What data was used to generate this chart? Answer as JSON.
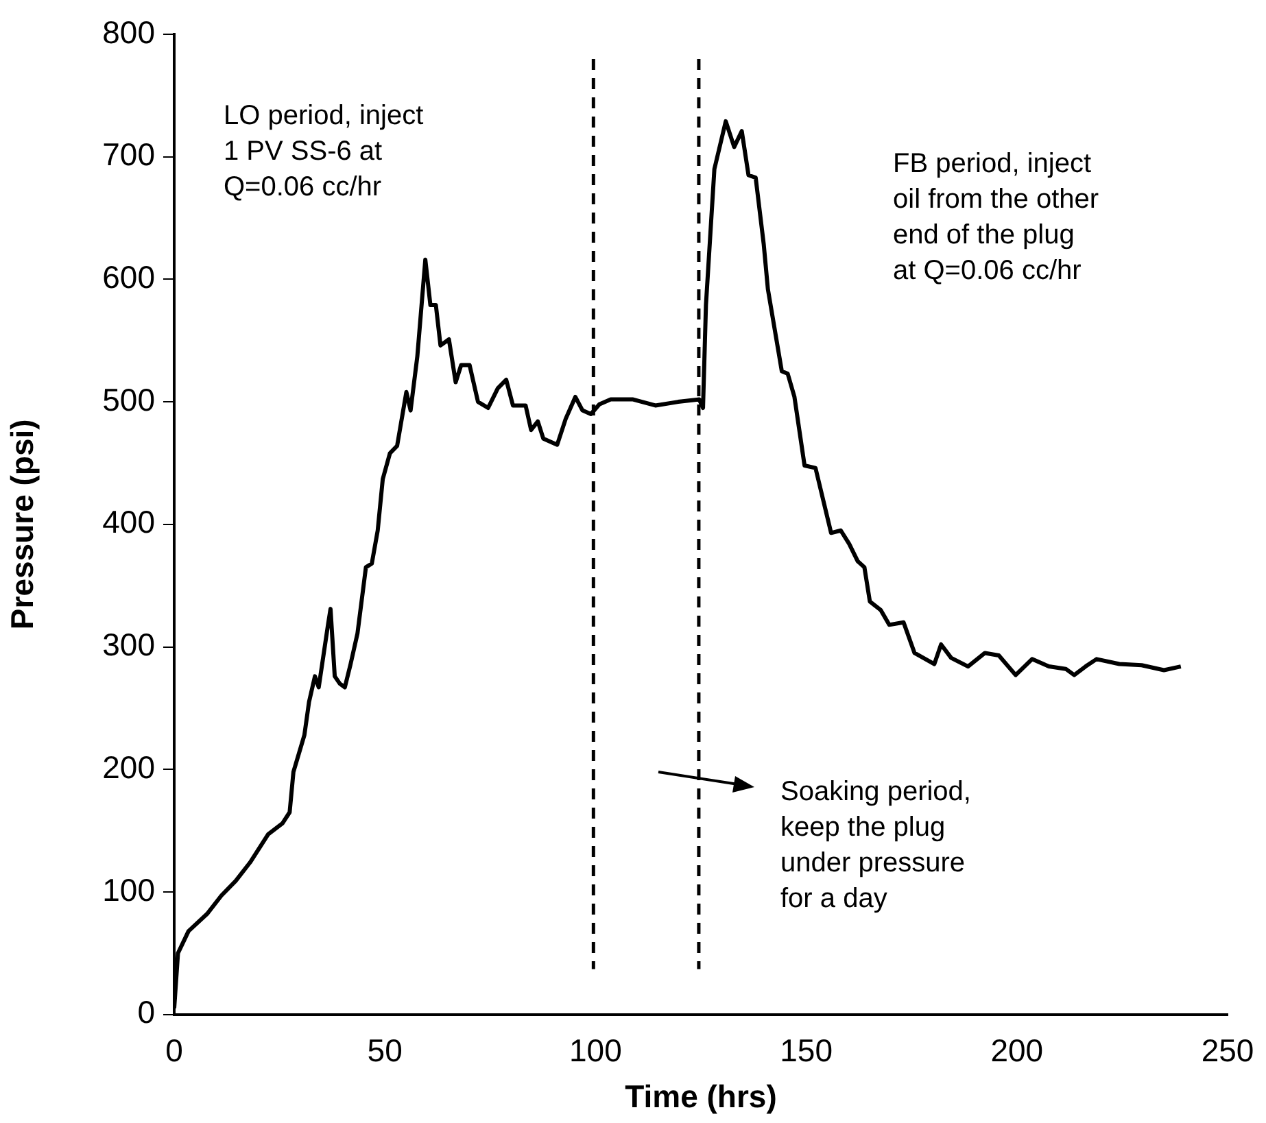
{
  "chart_data": {
    "type": "line",
    "xlabel": "Time (hrs)",
    "ylabel": "Pressure (psi)",
    "xlim": [
      0,
      250
    ],
    "xticks": [
      0,
      50,
      100,
      150,
      200,
      250
    ],
    "ylim": [
      0,
      800
    ],
    "yticks": [
      0,
      100,
      200,
      300,
      400,
      500,
      600,
      700,
      800
    ],
    "grid": false,
    "legend": false,
    "marker": "none",
    "line_style": "solid",
    "series": [
      {
        "color": "#000000",
        "x": [
          0,
          0.9,
          3.4,
          7.8,
          11.2,
          14.6,
          18,
          22.3,
          25.7,
          27.4,
          28.3,
          30.9,
          32,
          33.4,
          34.3,
          36.5,
          37.1,
          38.1,
          39.3,
          40.5,
          41.8,
          43.5,
          45.5,
          46.9,
          48.3,
          49.5,
          51.2,
          52.9,
          55.1,
          56.1,
          57.7,
          59.6,
          60.8,
          62.1,
          63.2,
          65.2,
          66.8,
          68.1,
          70.1,
          72.1,
          74.5,
          76.8,
          78.8,
          80.4,
          83.4,
          84.7,
          86.3,
          87.6,
          90.9,
          92.9,
          95.2,
          96.9,
          98.9,
          100.9,
          103.6,
          108.9,
          114.2,
          119.6,
          124.6,
          125.5,
          126.2,
          128.2,
          130.9,
          132.9,
          134.7,
          136.3,
          138,
          139.9,
          140.9,
          144.2,
          145.6,
          147.2,
          149.6,
          152.2,
          155.9,
          158.2,
          160.2,
          162.2,
          163.8,
          165.1,
          167.7,
          169.7,
          173.1,
          175.7,
          180.4,
          182,
          184.4,
          188.4,
          192.4,
          195.7,
          199.7,
          203.6,
          207.6,
          211.6,
          213.6,
          216.3,
          218.9,
          224.3,
          229.6,
          234.9,
          238.9
        ],
        "values": [
          5,
          50,
          68,
          82,
          97,
          109,
          124,
          147,
          156,
          165,
          198,
          228,
          255,
          276,
          267,
          318,
          331,
          276,
          270,
          267,
          285,
          311,
          365,
          368,
          395,
          437,
          458,
          464,
          508,
          493,
          537,
          616,
          579,
          579,
          546,
          551,
          516,
          530,
          530,
          500,
          495,
          511,
          518,
          497,
          497,
          477,
          484,
          470,
          465,
          486,
          504,
          493,
          490,
          498,
          502,
          502,
          497,
          500,
          502,
          495,
          579,
          690,
          729,
          708,
          721,
          685,
          683,
          629,
          592,
          525,
          523,
          504,
          448,
          446,
          393,
          395,
          384,
          370,
          365,
          337,
          330,
          318,
          320,
          295,
          286,
          302,
          291,
          284,
          295,
          293,
          277,
          290,
          284,
          282,
          277,
          284,
          290,
          286,
          285,
          281,
          284
        ]
      }
    ],
    "ref_lines": [
      {
        "axis": "x",
        "value": 99.5,
        "color": "#000000",
        "line_style": "dashed"
      },
      {
        "axis": "x",
        "value": 124.5,
        "color": "#000000",
        "line_style": "dashed"
      }
    ],
    "annotations": [
      "LO period, inject\n1 PV SS-6 at\nQ=0.06 cc/hr",
      "FB period, inject\noil from the other\nend of the plug\nat Q=0.06 cc/hr",
      "Soaking period,\nkeep the plug\nunder pressure\nfor a day"
    ]
  }
}
